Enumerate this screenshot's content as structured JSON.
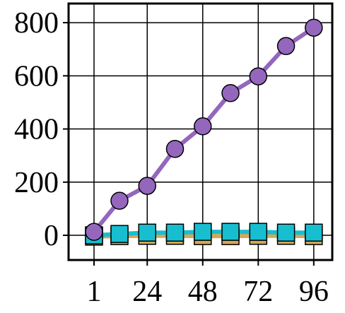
{
  "chart_data": {
    "type": "line",
    "x": [
      1,
      12,
      24,
      36,
      48,
      60,
      72,
      84,
      96
    ],
    "series": [
      {
        "color": "#d4a657",
        "marker": "square",
        "values": [
          -5,
          -3,
          -2,
          -2,
          -3,
          -3,
          -2,
          -2,
          -3
        ]
      },
      {
        "color": "#17becf",
        "marker": "square",
        "values": [
          0,
          5,
          10,
          10,
          13,
          13,
          13,
          10,
          10
        ]
      },
      {
        "color": "#9467bd",
        "marker": "circle",
        "values": [
          13,
          130,
          186,
          325,
          410,
          535,
          598,
          712,
          781
        ]
      }
    ],
    "xlim": [
      -10,
      104
    ],
    "xticks": [
      1,
      24,
      48,
      72,
      96
    ],
    "ylim": [
      -93,
      872
    ],
    "yticks": [
      0,
      200,
      400,
      600,
      800
    ],
    "grid": true
  }
}
